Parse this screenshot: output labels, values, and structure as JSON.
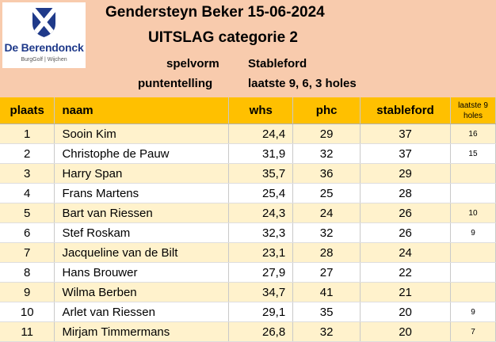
{
  "logo": {
    "name": "De Berendonck",
    "subtitle": "BurgGolf | Wijchen"
  },
  "header": {
    "title": "Gendersteyn Beker 15-06-2024",
    "subtitle": "UITSLAG categorie 2",
    "spelvorm_label": "spelvorm",
    "spelvorm_value": "Stableford",
    "puntentelling_label": "puntentelling",
    "puntentelling_value": "laatste 9, 6, 3 holes"
  },
  "table": {
    "columns": [
      "plaats",
      "naam",
      "whs",
      "phc",
      "stableford",
      "laatste 9 holes"
    ],
    "rows": [
      {
        "plaats": "1",
        "naam": "Sooin Kim",
        "whs": "24,4",
        "phc": "29",
        "stableford": "37",
        "laatste": "16"
      },
      {
        "plaats": "2",
        "naam": "Christophe de Pauw",
        "whs": "31,9",
        "phc": "32",
        "stableford": "37",
        "laatste": "15"
      },
      {
        "plaats": "3",
        "naam": "Harry Span",
        "whs": "35,7",
        "phc": "36",
        "stableford": "29",
        "laatste": ""
      },
      {
        "plaats": "4",
        "naam": "Frans Martens",
        "whs": "25,4",
        "phc": "25",
        "stableford": "28",
        "laatste": ""
      },
      {
        "plaats": "5",
        "naam": "Bart van Riessen",
        "whs": "24,3",
        "phc": "24",
        "stableford": "26",
        "laatste": "10"
      },
      {
        "plaats": "6",
        "naam": "Stef Roskam",
        "whs": "32,3",
        "phc": "32",
        "stableford": "26",
        "laatste": "9"
      },
      {
        "plaats": "7",
        "naam": "Jacqueline van de Bilt",
        "whs": "23,1",
        "phc": "28",
        "stableford": "24",
        "laatste": ""
      },
      {
        "plaats": "8",
        "naam": "Hans Brouwer",
        "whs": "27,9",
        "phc": "27",
        "stableford": "22",
        "laatste": ""
      },
      {
        "plaats": "9",
        "naam": "Wilma Berben",
        "whs": "34,7",
        "phc": "41",
        "stableford": "21",
        "laatste": ""
      },
      {
        "plaats": "10",
        "naam": "Arlet van Riessen",
        "whs": "29,1",
        "phc": "35",
        "stableford": "20",
        "laatste": "9"
      },
      {
        "plaats": "11",
        "naam": "Mirjam Timmermans",
        "whs": "26,8",
        "phc": "32",
        "stableford": "20",
        "laatste": "7"
      }
    ]
  },
  "colors": {
    "header_bg": "#f8cbad",
    "column_header_bg": "#ffc000",
    "stripe_bg": "#fff2cc",
    "logo_blue": "#1f3a8a"
  }
}
